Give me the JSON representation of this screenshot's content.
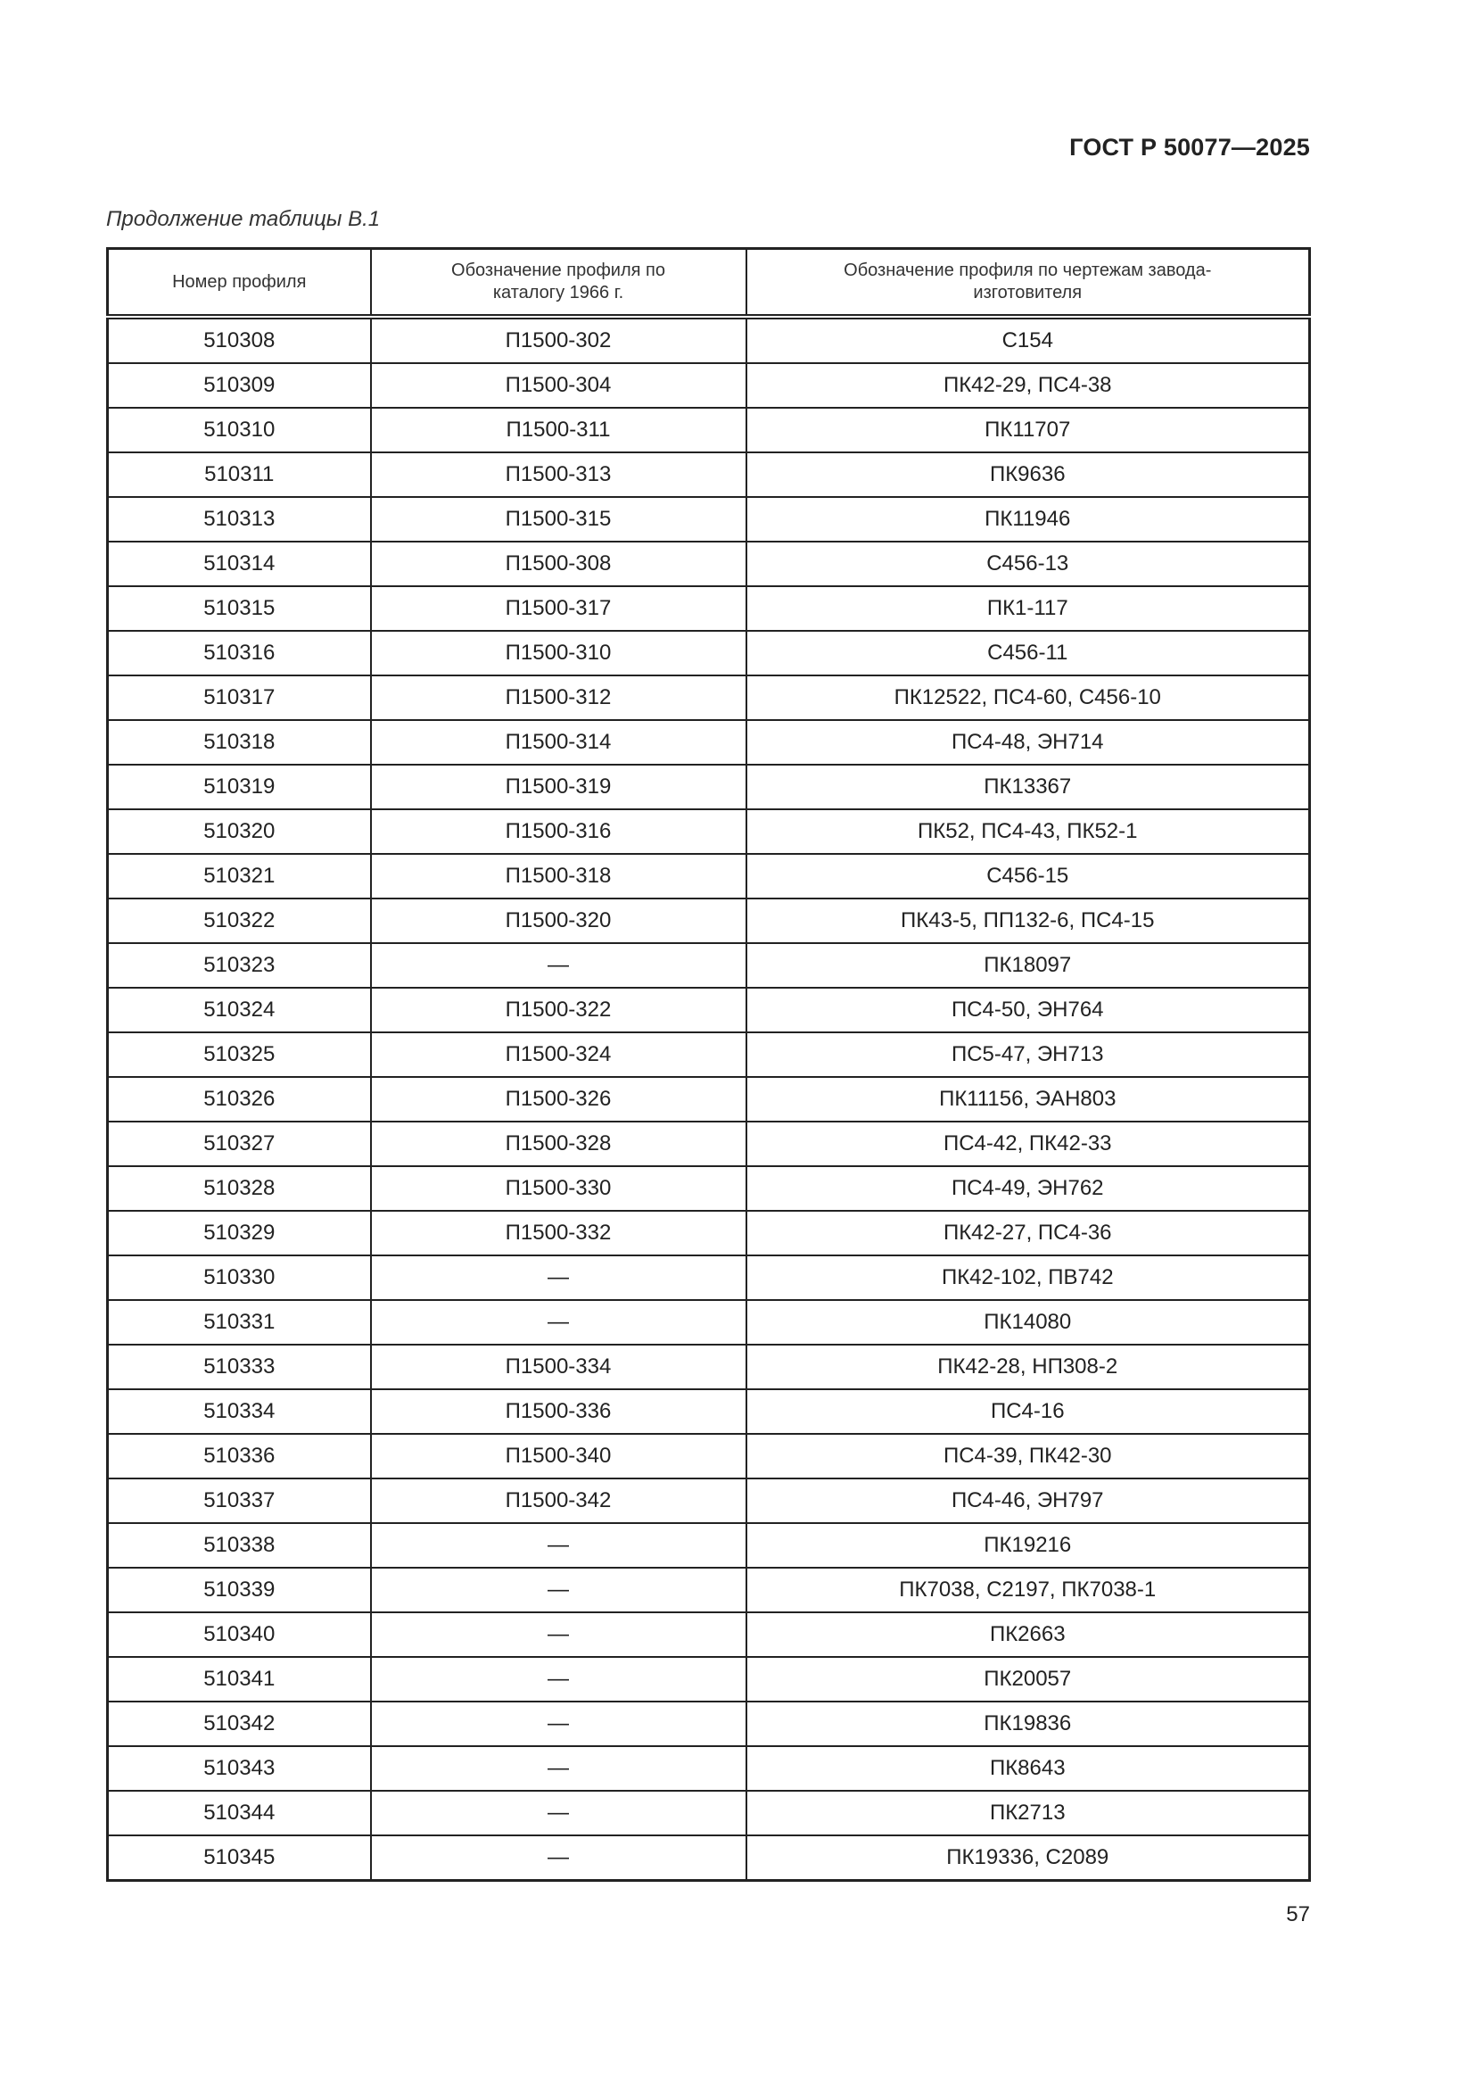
{
  "header": {
    "standard": "ГОСТ Р 50077—2025"
  },
  "caption": "Продолжение таблицы В.1",
  "table": {
    "columns": [
      "Номер профиля",
      "Обозначение профиля по каталогу 1966 г.",
      "Обозначение профиля по чертежам завода-изготовителя"
    ],
    "rows": [
      [
        "510308",
        "П1500-302",
        "С154"
      ],
      [
        "510309",
        "П1500-304",
        "ПК42-29, ПС4-38"
      ],
      [
        "510310",
        "П1500-311",
        "ПК11707"
      ],
      [
        "510311",
        "П1500-313",
        "ПК9636"
      ],
      [
        "510313",
        "П1500-315",
        "ПК11946"
      ],
      [
        "510314",
        "П1500-308",
        "С456-13"
      ],
      [
        "510315",
        "П1500-317",
        "ПК1-117"
      ],
      [
        "510316",
        "П1500-310",
        "С456-11"
      ],
      [
        "510317",
        "П1500-312",
        "ПК12522, ПС4-60, С456-10"
      ],
      [
        "510318",
        "П1500-314",
        "ПС4-48, ЭН714"
      ],
      [
        "510319",
        "П1500-319",
        "ПК13367"
      ],
      [
        "510320",
        "П1500-316",
        "ПК52, ПС4-43, ПК52-1"
      ],
      [
        "510321",
        "П1500-318",
        "С456-15"
      ],
      [
        "510322",
        "П1500-320",
        "ПК43-5, ПП132-6, ПС4-15"
      ],
      [
        "510323",
        "—",
        "ПК18097"
      ],
      [
        "510324",
        "П1500-322",
        "ПС4-50, ЭН764"
      ],
      [
        "510325",
        "П1500-324",
        "ПС5-47, ЭН713"
      ],
      [
        "510326",
        "П1500-326",
        "ПК11156, ЭАН803"
      ],
      [
        "510327",
        "П1500-328",
        "ПС4-42, ПК42-33"
      ],
      [
        "510328",
        "П1500-330",
        "ПС4-49, ЭН762"
      ],
      [
        "510329",
        "П1500-332",
        "ПК42-27, ПС4-36"
      ],
      [
        "510330",
        "—",
        "ПК42-102, ПВ742"
      ],
      [
        "510331",
        "—",
        "ПК14080"
      ],
      [
        "510333",
        "П1500-334",
        "ПК42-28, НП308-2"
      ],
      [
        "510334",
        "П1500-336",
        "ПС4-16"
      ],
      [
        "510336",
        "П1500-340",
        "ПС4-39, ПК42-30"
      ],
      [
        "510337",
        "П1500-342",
        "ПС4-46, ЭН797"
      ],
      [
        "510338",
        "—",
        "ПК19216"
      ],
      [
        "510339",
        "—",
        "ПК7038, С2197, ПК7038-1"
      ],
      [
        "510340",
        "—",
        "ПК2663"
      ],
      [
        "510341",
        "—",
        "ПК20057"
      ],
      [
        "510342",
        "—",
        "ПК19836"
      ],
      [
        "510343",
        "—",
        "ПК8643"
      ],
      [
        "510344",
        "—",
        "ПК2713"
      ],
      [
        "510345",
        "—",
        "ПК19336, С2089"
      ]
    ]
  },
  "footer": {
    "page_number": "57"
  }
}
